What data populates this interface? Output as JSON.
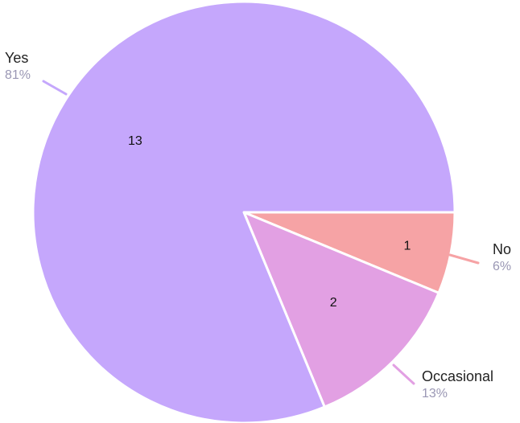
{
  "chart_data": {
    "type": "pie",
    "slices": [
      {
        "label": "No",
        "value": 1,
        "percent_label": "6%",
        "color": "#f6a3a5"
      },
      {
        "label": "Occasional",
        "value": 2,
        "percent_label": "13%",
        "color": "#e2a0e3"
      },
      {
        "label": "Yes",
        "value": 13,
        "percent_label": "81%",
        "color": "#c5a7fc"
      }
    ],
    "start": "3 o'clock",
    "direction": "clockwise",
    "legend": "none"
  }
}
